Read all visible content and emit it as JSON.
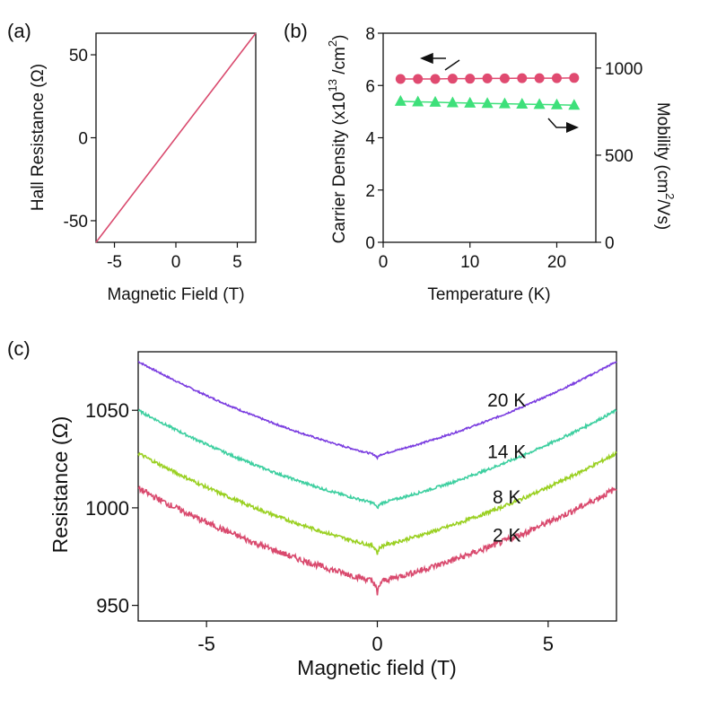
{
  "chart_data": [
    {
      "panel": "a",
      "panel_label": "(a)",
      "type": "line",
      "xlabel": "Magnetic Field (T)",
      "ylabel": "Hall Resistance (Ω)",
      "xlim": [
        -6.5,
        6.5
      ],
      "ylim": [
        -63,
        63
      ],
      "xticks": [
        -5,
        0,
        5
      ],
      "xtick_labels": [
        "-5",
        "0",
        "5"
      ],
      "yticks": [
        50,
        0,
        -50
      ],
      "ytick_labels": [
        "50",
        "0",
        "-50"
      ],
      "grid": false,
      "series": [
        {
          "name": "Hall",
          "color": "#d94a6e",
          "x": [
            -6.5,
            6.5
          ],
          "y": [
            -63,
            63
          ]
        }
      ]
    },
    {
      "panel": "b",
      "panel_label": "(b)",
      "type": "scatter",
      "xlabel": "Temperature (K)",
      "ylabel_left": "Carrier Density (x10",
      "ylabel_left_sup": "13",
      "ylabel_left_mid": " /cm",
      "ylabel_left_sup2": "2",
      "ylabel_left_end": ")",
      "ylabel_right": "Mobility (cm",
      "ylabel_right_sup": "2",
      "ylabel_right_end": "/Vs)",
      "xlim": [
        0,
        24.5
      ],
      "ylim_left": [
        0,
        8
      ],
      "ylim_right": [
        0,
        1200
      ],
      "xticks": [
        0,
        10,
        20
      ],
      "xtick_labels": [
        "0",
        "10",
        "20"
      ],
      "yticks_left": [
        0,
        2,
        4,
        6,
        8
      ],
      "ytick_labels_left": [
        "0",
        "2",
        "4",
        "6",
        "8"
      ],
      "yticks_right": [
        0,
        500,
        1000
      ],
      "ytick_labels_right": [
        "0",
        "500",
        "1000"
      ],
      "grid": false,
      "x": [
        2,
        4,
        6,
        8,
        10,
        12,
        14,
        16,
        18,
        20,
        22
      ],
      "series": [
        {
          "name": "Carrier Density",
          "axis": "left",
          "marker": "circle",
          "color": "#e04a70",
          "values": [
            6.25,
            6.25,
            6.25,
            6.26,
            6.26,
            6.27,
            6.27,
            6.28,
            6.28,
            6.28,
            6.29
          ]
        },
        {
          "name": "Mobility",
          "axis": "right",
          "marker": "triangle",
          "color": "#3ee07a",
          "values": [
            809,
            806,
            804,
            801,
            799,
            797,
            795,
            793,
            791,
            789,
            787
          ]
        }
      ]
    },
    {
      "panel": "c",
      "panel_label": "(c)",
      "type": "line",
      "xlabel": "Magnetic field (T)",
      "ylabel": "Resistance (Ω)",
      "xlim": [
        -7,
        7
      ],
      "ylim": [
        942,
        1080
      ],
      "xticks": [
        -5,
        0,
        5
      ],
      "xtick_labels": [
        "-5",
        "0",
        "5"
      ],
      "yticks": [
        950,
        1000,
        1050
      ],
      "ytick_labels": [
        "950",
        "1000",
        "1050"
      ],
      "grid": false,
      "series": [
        {
          "name": "20 K",
          "label": "20 K",
          "color": "#7b3ee0",
          "r0": 1027,
          "r_edge": 1075,
          "noise": 0.4,
          "dip": 1.5
        },
        {
          "name": "14 K",
          "label": "14 K",
          "color": "#3ecfa0",
          "r0": 1002,
          "r_edge": 1050,
          "noise": 0.6,
          "dip": 2.5
        },
        {
          "name": "8 K",
          "label": "8 K",
          "color": "#9ad022",
          "r0": 980,
          "r_edge": 1028,
          "noise": 0.8,
          "dip": 3.5
        },
        {
          "name": "2 K",
          "label": "2 K",
          "color": "#d94a6e",
          "r0": 962,
          "r_edge": 1010,
          "noise": 1.4,
          "dip": 7
        }
      ]
    }
  ]
}
